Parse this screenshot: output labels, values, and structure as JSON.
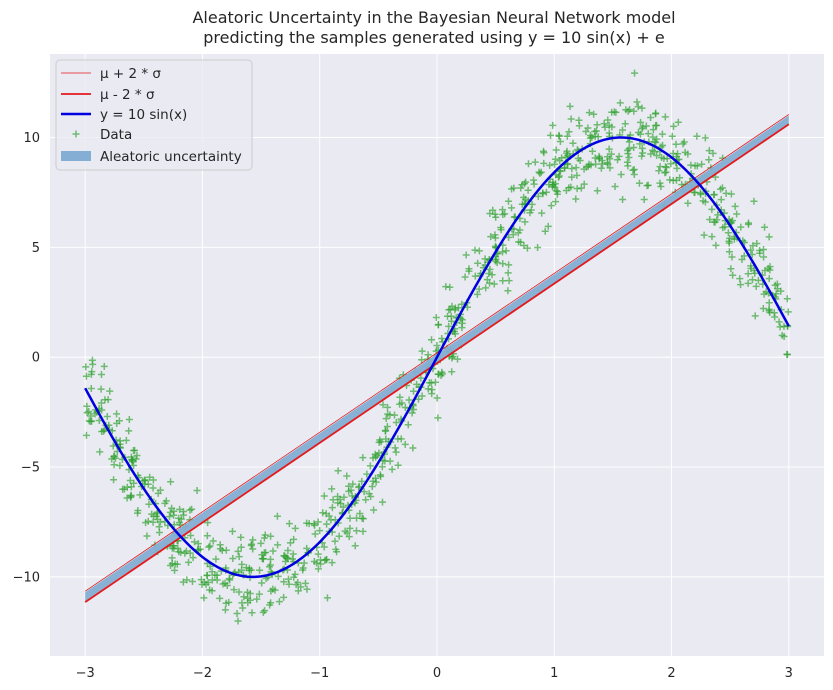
{
  "chart_data": {
    "type": "line",
    "title_lines": [
      "Aleatoric Uncertainty in the Bayesian Neural Network model",
      "predicting the samples generated using y = 10 sin(x) + e"
    ],
    "xlabel": "",
    "ylabel": "",
    "xlim": [
      -3.3,
      3.3
    ],
    "ylim": [
      -13.6,
      13.8
    ],
    "xticks": [
      -3,
      -2,
      -1,
      0,
      1,
      2,
      3
    ],
    "xtick_labels": [
      "−3",
      "−2",
      "−1",
      "0",
      "1",
      "2",
      "3"
    ],
    "yticks": [
      -10,
      -5,
      0,
      5,
      10
    ],
    "ytick_labels": [
      "−10",
      "−5",
      "0",
      "5",
      "10"
    ],
    "grid": true,
    "legend_position": "top-left",
    "colors": {
      "background": "#eaeaf2",
      "grid": "#ffffff",
      "upper": "#e31a1c",
      "lower": "#e31a1c",
      "true_function": "#0000e0",
      "data": "#2ca02c",
      "band": "#84aed3"
    },
    "series": [
      {
        "name": "μ + 2 * σ",
        "kind": "line",
        "x": [
          -3,
          3
        ],
        "y": [
          -10.65,
          11.05
        ]
      },
      {
        "name": "μ - 2 * σ",
        "kind": "line",
        "x": [
          -3,
          3
        ],
        "y": [
          -11.15,
          10.6
        ]
      },
      {
        "name": "y = 10 sin(x)",
        "kind": "function",
        "formula": "10*sin(x)",
        "x_range": [
          -3,
          3
        ]
      },
      {
        "name": "Data",
        "kind": "scatter",
        "n_points": 1000,
        "noise_sd": 1.0,
        "formula": "10*sin(x) + e",
        "x_range": [
          -3,
          3
        ]
      },
      {
        "name": "Aleatoric uncertainty",
        "kind": "band",
        "x": [
          -3,
          3
        ],
        "y_low": [
          -11.1,
          10.62
        ],
        "y_high": [
          -10.7,
          11.0
        ]
      }
    ]
  }
}
